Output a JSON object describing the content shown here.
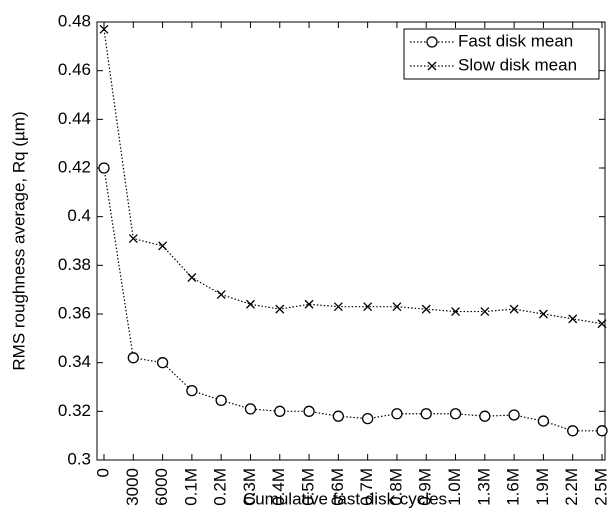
{
  "chart_data": {
    "type": "line",
    "xlabel": "Cumulative fast disk cycles",
    "ylabel": "RMS roughness average, Rq (µm)",
    "categories": [
      "0",
      "3000",
      "6000",
      "0.1M",
      "0.2M",
      "0.3M",
      "0.4M",
      "0.5M",
      "0.6M",
      "0.7M",
      "0.8M",
      "0.9M",
      "1.0M",
      "1.3M",
      "1.6M",
      "1.9M",
      "2.2M",
      "2.5M"
    ],
    "series": [
      {
        "name": "Fast disk mean",
        "color": "#000000",
        "marker": "o",
        "values": [
          0.42,
          0.342,
          0.34,
          0.3285,
          0.3245,
          0.321,
          0.32,
          0.32,
          0.318,
          0.317,
          0.319,
          0.319,
          0.319,
          0.318,
          0.3185,
          0.316,
          0.312,
          0.312
        ]
      },
      {
        "name": "Slow disk mean",
        "color": "#000000",
        "marker": "x",
        "values": [
          0.477,
          0.391,
          0.388,
          0.375,
          0.368,
          0.364,
          0.362,
          0.364,
          0.363,
          0.363,
          0.363,
          0.362,
          0.361,
          0.361,
          0.362,
          0.36,
          0.358,
          0.356
        ]
      }
    ],
    "ylim": [
      0.3,
      0.48
    ],
    "yticks": [
      0.3,
      0.32,
      0.34,
      0.36,
      0.38,
      0.4,
      0.42,
      0.44,
      0.46,
      0.48
    ],
    "legend": "upper right"
  }
}
